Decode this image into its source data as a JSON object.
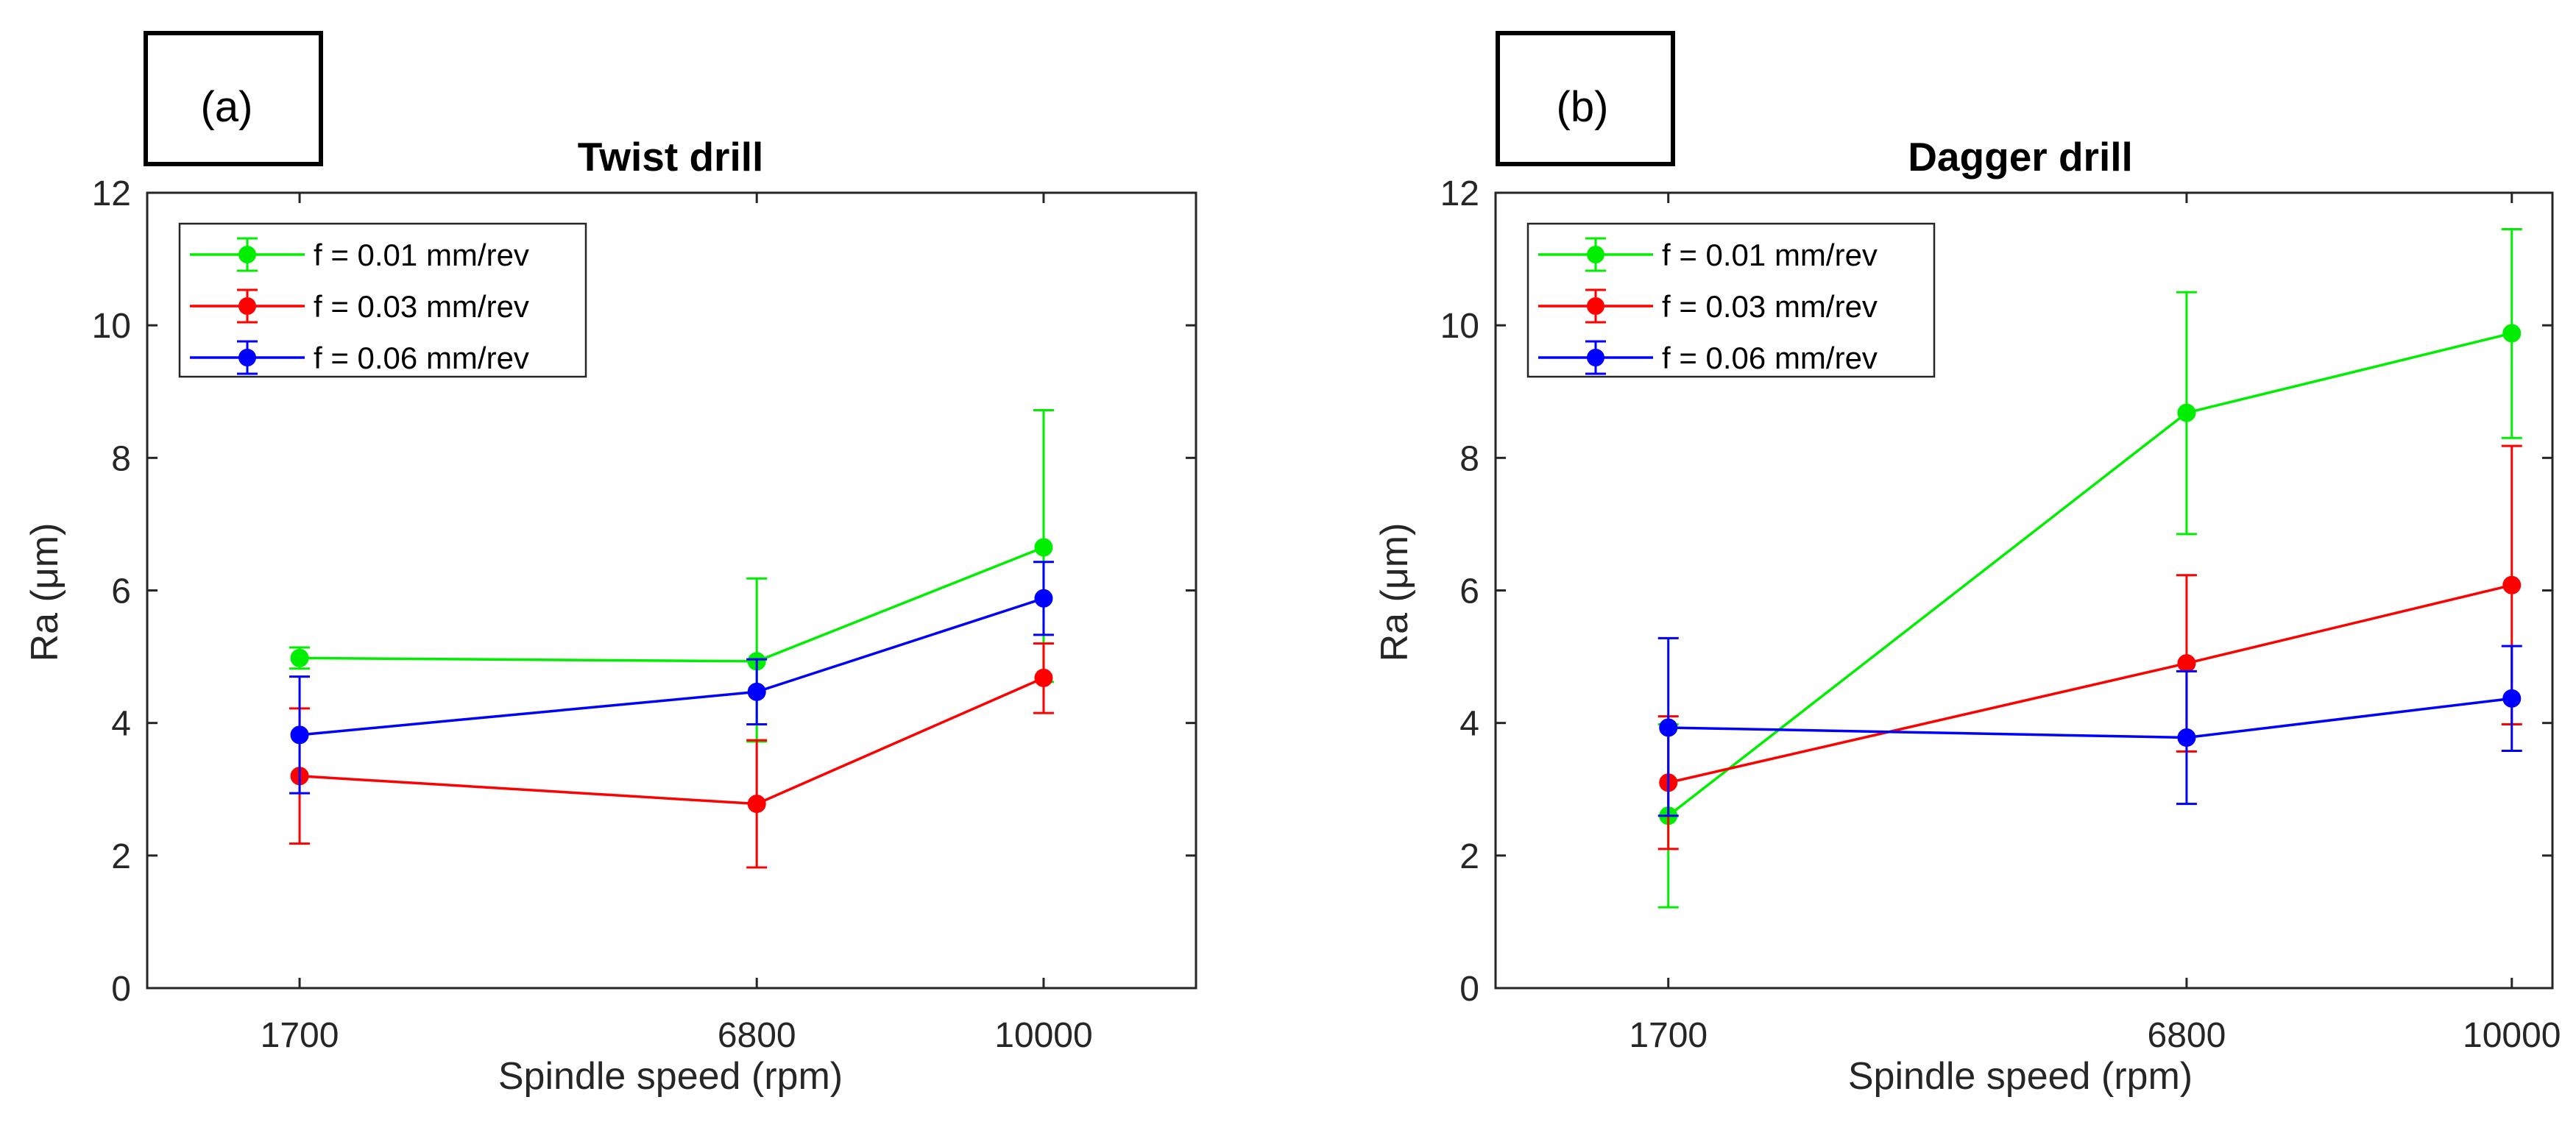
{
  "chart_data": [
    {
      "panel_label": "(a)",
      "type": "line",
      "title": "Twist drill",
      "xlabel": "Spindle speed (rpm)",
      "ylabel": "Ra (μm)",
      "categories": [
        "1700",
        "6800",
        "10000"
      ],
      "x": [
        1700,
        6800,
        10000
      ],
      "xlim": [
        0,
        11700
      ],
      "ylim": [
        0,
        12
      ],
      "yticks": [
        "0",
        "2",
        "4",
        "6",
        "8",
        "10",
        "12"
      ],
      "grid": false,
      "legend_position": "top-left",
      "error_bars": true,
      "series": [
        {
          "name": "f = 0.01 mm/rev",
          "color": "#00ee00",
          "values": [
            4.98,
            4.93,
            6.65
          ],
          "err_low": [
            4.82,
            3.72,
            4.62
          ],
          "err_high": [
            5.14,
            6.18,
            8.72
          ]
        },
        {
          "name": "f = 0.03 mm/rev",
          "color": "#ff0000",
          "values": [
            3.2,
            2.78,
            4.68
          ],
          "err_low": [
            2.18,
            1.82,
            4.15
          ],
          "err_high": [
            4.22,
            3.74,
            5.2
          ]
        },
        {
          "name": "f = 0.06 mm/rev",
          "color": "#0000ff",
          "values": [
            3.82,
            4.47,
            5.88
          ],
          "err_low": [
            2.94,
            3.98,
            5.33
          ],
          "err_high": [
            4.7,
            4.96,
            6.43
          ]
        }
      ]
    },
    {
      "panel_label": "(b)",
      "type": "line",
      "title": "Dagger drill",
      "xlabel": "Spindle speed (rpm)",
      "ylabel": "Ra (μm)",
      "categories": [
        "1700",
        "6800",
        "10000"
      ],
      "x": [
        1700,
        6800,
        10000
      ],
      "xlim": [
        0,
        10400
      ],
      "ylim": [
        0,
        12
      ],
      "yticks": [
        "0",
        "2",
        "4",
        "6",
        "8",
        "10",
        "12"
      ],
      "grid": false,
      "legend_position": "top-left",
      "error_bars": true,
      "series": [
        {
          "name": "f = 0.01 mm/rev",
          "color": "#00ee00",
          "values": [
            2.6,
            8.68,
            9.88
          ],
          "err_low": [
            1.22,
            6.85,
            8.3
          ],
          "err_high": [
            3.98,
            10.5,
            11.45
          ]
        },
        {
          "name": "f = 0.03 mm/rev",
          "color": "#ff0000",
          "values": [
            3.1,
            4.9,
            6.08
          ],
          "err_low": [
            2.1,
            3.57,
            3.98
          ],
          "err_high": [
            4.1,
            6.23,
            8.18
          ]
        },
        {
          "name": "f = 0.06 mm/rev",
          "color": "#0000ff",
          "values": [
            3.93,
            3.78,
            4.37
          ],
          "err_low": [
            2.6,
            2.78,
            3.58
          ],
          "err_high": [
            5.28,
            4.78,
            5.16
          ]
        }
      ]
    }
  ]
}
